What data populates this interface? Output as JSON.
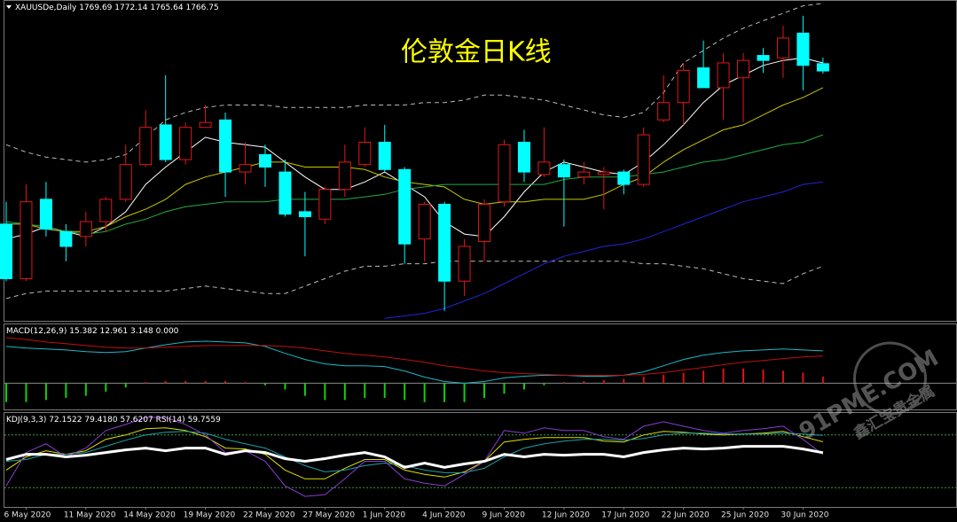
{
  "chart_data": [
    {
      "type": "candlestick",
      "title": "伦敦金日K线",
      "symbol": "XAUUSDe,Daily",
      "categories": [
        null,
        "6 May 2020",
        null,
        null,
        "11 May 2020",
        null,
        null,
        "14 May 2020",
        null,
        null,
        "19 May 2020",
        null,
        null,
        "22 May 2020",
        null,
        null,
        "27 May 2020",
        null,
        null,
        "1 Jun 2020",
        null,
        null,
        "4 Jun 2020",
        null,
        null,
        "9 Jun 2020",
        null,
        null,
        "12 Jun 2020",
        null,
        null,
        "17 Jun 2020",
        null,
        null,
        "22 Jun 2020",
        null,
        null,
        "25 Jun 2020",
        null,
        null,
        "30 Jun 2020",
        null
      ],
      "open": [
        1705,
        1683,
        1715,
        1702,
        1700,
        1706,
        1715,
        1729,
        1745,
        1731,
        1744,
        1747,
        1726,
        1733,
        1726,
        1710,
        1707,
        1719,
        1729,
        1738,
        1727,
        1699,
        1713,
        1682,
        1698,
        1714,
        1738,
        1725,
        1729,
        1724,
        1725,
        1726,
        1721,
        1747,
        1754,
        1768,
        1760,
        1764,
        1773,
        1772,
        1782,
        1769.69
      ],
      "high": [
        1714,
        1721,
        1722,
        1705,
        1710,
        1716,
        1737,
        1751,
        1765,
        1746,
        1753,
        1750,
        1738,
        1737,
        1731,
        1718,
        1720,
        1737,
        1744,
        1745,
        1728,
        1714,
        1714,
        1699,
        1715,
        1739,
        1743,
        1744,
        1731,
        1730,
        1728,
        1727,
        1744,
        1765,
        1770,
        1779,
        1774,
        1774,
        1776,
        1785,
        1789,
        1772.14
      ],
      "low": [
        1682,
        1682,
        1700,
        1690,
        1696,
        1702,
        1714,
        1728,
        1730,
        1729,
        1744,
        1716,
        1721,
        1720,
        1708,
        1692,
        1705,
        1716,
        1728,
        1726,
        1689,
        1690,
        1670,
        1676,
        1690,
        1712,
        1722,
        1724,
        1704,
        1721,
        1711,
        1717,
        1720,
        1746,
        1745,
        1760,
        1747,
        1746,
        1766,
        1764,
        1759,
        1765.64
      ],
      "close": [
        1683,
        1714,
        1703,
        1696,
        1706,
        1715,
        1729,
        1744,
        1731,
        1744,
        1746,
        1726,
        1729,
        1728,
        1709,
        1708,
        1719,
        1730,
        1738,
        1727,
        1697,
        1713,
        1682,
        1696,
        1713,
        1737,
        1726,
        1730,
        1724,
        1726,
        1726,
        1721,
        1741,
        1754,
        1767,
        1760,
        1770,
        1771,
        1771,
        1780,
        1769,
        1766.75
      ],
      "up_color": "#e01818",
      "down_color": "#00ffff",
      "ylim": [
        1666,
        1795
      ],
      "series": [
        {
          "color": "#bbbbbb",
          "style": "dashed",
          "values": [
            1737,
            1734,
            1732,
            1731,
            1730,
            1731,
            1733,
            1740,
            1747,
            1750,
            1752,
            1753,
            1753,
            1753,
            1752,
            1752,
            1752,
            1752,
            1753,
            1753,
            1753,
            1754,
            1754,
            1755,
            1757,
            1757,
            1756,
            1755,
            1753,
            1751,
            1749,
            1748,
            1750,
            1758,
            1770,
            1775,
            1780,
            1784,
            1787,
            1790,
            1793,
            1794
          ]
        },
        {
          "color": "#bbbbbb",
          "style": "dashed",
          "values": [
            1675,
            1677,
            1678,
            1678,
            1678,
            1678,
            1678,
            1678,
            1678,
            1679,
            1680,
            1679,
            1678,
            1677,
            1677,
            1680,
            1683,
            1686,
            1688,
            1688,
            1689,
            1689,
            1690,
            1690,
            1690,
            1690,
            1690,
            1690,
            1690,
            1690,
            1690,
            1690,
            1689,
            1689,
            1688,
            1687,
            1685,
            1683,
            1682,
            1681,
            1685,
            1688
          ]
        },
        {
          "color": "#ffffff",
          "style": "solid",
          "values": [
            1699,
            1701,
            1704,
            1702,
            1700,
            1704,
            1710,
            1721,
            1728,
            1734,
            1740,
            1738,
            1737,
            1736,
            1730,
            1724,
            1719,
            1719,
            1722,
            1726,
            1721,
            1716,
            1706,
            1701,
            1700,
            1708,
            1718,
            1726,
            1730,
            1728,
            1726,
            1725,
            1730,
            1737,
            1745,
            1754,
            1761,
            1765,
            1769,
            1771,
            1772,
            1770
          ]
        },
        {
          "color": "#c8c800",
          "style": "solid",
          "values": [
            1705,
            1705,
            1703,
            1702,
            1702,
            1704,
            1708,
            1711,
            1715,
            1721,
            1724,
            1726,
            1728,
            1730,
            1730,
            1728,
            1728,
            1728,
            1727,
            1724,
            1722,
            1721,
            1720,
            1715,
            1713,
            1714,
            1714,
            1715,
            1715,
            1715,
            1717,
            1721,
            1724,
            1730,
            1735,
            1739,
            1743,
            1745,
            1749,
            1753,
            1756,
            1760
          ]
        },
        {
          "color": "#22aa44",
          "style": "solid",
          "values": [
            1706,
            1705,
            1704,
            1702,
            1701,
            1702,
            1705,
            1707,
            1710,
            1712,
            1713,
            1714,
            1714,
            1714,
            1715,
            1715,
            1715,
            1715,
            1716,
            1717,
            1719,
            1720,
            1721,
            1721,
            1721,
            1721,
            1721,
            1721,
            1723,
            1724,
            1724,
            1724,
            1725,
            1726,
            1728,
            1730,
            1731,
            1733,
            1735,
            1737,
            1738,
            1741
          ]
        },
        {
          "color": "#2323d8",
          "style": "solid",
          "values": [
            null,
            null,
            null,
            null,
            null,
            null,
            null,
            null,
            null,
            null,
            null,
            null,
            null,
            null,
            null,
            null,
            null,
            null,
            null,
            1667,
            1668,
            1669,
            1671,
            1674,
            1677,
            1681,
            1685,
            1689,
            1692,
            1694,
            1696,
            1697,
            1699,
            1702,
            1705,
            1708,
            1711,
            1714,
            1716,
            1718,
            1721,
            1722
          ]
        }
      ]
    },
    {
      "type": "macd",
      "label": "MACD(12,26,9)",
      "ylim": [
        -12.5,
        28
      ],
      "levels": [
        0
      ],
      "level_color": "#8a8a8a",
      "extra_readout": {
        "value": 0,
        "label": "0.000"
      },
      "series": [
        {
          "color": "#19b8c8",
          "style": "line",
          "values": [
            17.5,
            16.7,
            16.3,
            15.8,
            15,
            14.6,
            15,
            16.7,
            18.3,
            19.6,
            20,
            19.6,
            19.2,
            17.5,
            14.2,
            11.3,
            9.2,
            8.3,
            8.3,
            7.9,
            5.8,
            2.9,
            0.8,
            0,
            0.8,
            2.5,
            3.3,
            3.8,
            3.8,
            3.3,
            3.3,
            3.8,
            5.4,
            8.3,
            11.3,
            13.3,
            14.6,
            15.4,
            15.8,
            16.3,
            15.8,
            15.382
          ]
        },
        {
          "color": "#c01010",
          "style": "line",
          "values": [
            21.7,
            20.8,
            19.6,
            18.8,
            17.9,
            17.1,
            16.7,
            16.7,
            17.1,
            17.5,
            17.9,
            17.9,
            17.9,
            17.9,
            17.5,
            16.7,
            15.4,
            14.2,
            13.3,
            12.5,
            11.3,
            10,
            8.3,
            7.1,
            5.8,
            5,
            4.6,
            4.2,
            3.8,
            3.8,
            3.8,
            3.8,
            4.2,
            5,
            6.3,
            7.5,
            8.8,
            10,
            10.8,
            11.7,
            12.5,
            12.961
          ]
        },
        {
          "up_color": "#e01010",
          "down_color": "#10d010",
          "style": "histogram",
          "values": [
            -9,
            -9,
            -8,
            -7,
            -6,
            -4,
            -2,
            0.5,
            1,
            1,
            1,
            1,
            0.5,
            -1,
            -3,
            -6,
            -8,
            -8,
            -7,
            -7,
            -8,
            -9,
            -9,
            -9,
            -7,
            -5,
            -3,
            -1,
            0.5,
            1,
            1.5,
            2,
            3,
            4,
            5,
            6,
            7,
            7,
            6.5,
            6,
            5,
            3.148
          ]
        }
      ]
    },
    {
      "type": "oscillator",
      "label": "KDJ(9,3,3)",
      "rsi_label": "RSI(14)",
      "ylim": [
        -2,
        105
      ],
      "levels": [
        80,
        20
      ],
      "level_color": "#3f9a3f",
      "series": [
        {
          "color": "#e0e000",
          "width": 1,
          "values": [
            40,
            55,
            62,
            58,
            62,
            75,
            80,
            87,
            88,
            85,
            78,
            65,
            64,
            58,
            40,
            30,
            30,
            42,
            52,
            52,
            40,
            35,
            32,
            38,
            50,
            72,
            75,
            77,
            77,
            77,
            73,
            72,
            80,
            84,
            83,
            81,
            80,
            81,
            82,
            84,
            78,
            72.1522
          ]
        },
        {
          "color": "#1ea0a8",
          "width": 1,
          "readout_label": "79.4180",
          "values": [
            50,
            52,
            58,
            58,
            60,
            67,
            74,
            80,
            83,
            84,
            82,
            75,
            70,
            65,
            55,
            45,
            38,
            40,
            45,
            48,
            45,
            40,
            37,
            37,
            42,
            55,
            65,
            70,
            73,
            75,
            75,
            74,
            76,
            80,
            82,
            82,
            81,
            81,
            81,
            82,
            81,
            79.418
          ]
        },
        {
          "color": "#8a3cd0",
          "width": 1,
          "values": [
            22,
            60,
            70,
            55,
            65,
            85,
            92,
            100,
            100,
            92,
            80,
            60,
            62,
            50,
            22,
            10,
            12,
            30,
            50,
            50,
            30,
            25,
            22,
            35,
            50,
            85,
            82,
            88,
            85,
            85,
            78,
            75,
            90,
            95,
            90,
            85,
            82,
            85,
            87,
            90,
            75,
            57.6207
          ]
        },
        {
          "color": "#ffffff",
          "width": 3,
          "values": [
            52,
            58,
            58,
            55,
            57,
            60,
            63,
            65,
            62,
            65,
            65,
            58,
            62,
            60,
            53,
            50,
            53,
            57,
            60,
            55,
            43,
            48,
            43,
            47,
            50,
            58,
            55,
            58,
            57,
            58,
            58,
            55,
            60,
            63,
            65,
            64,
            65,
            67,
            67,
            67,
            64,
            59.7559
          ]
        }
      ]
    }
  ],
  "watermark": {
    "logo": "91PME.COM",
    "name": "鑫汇宝贵金属"
  }
}
